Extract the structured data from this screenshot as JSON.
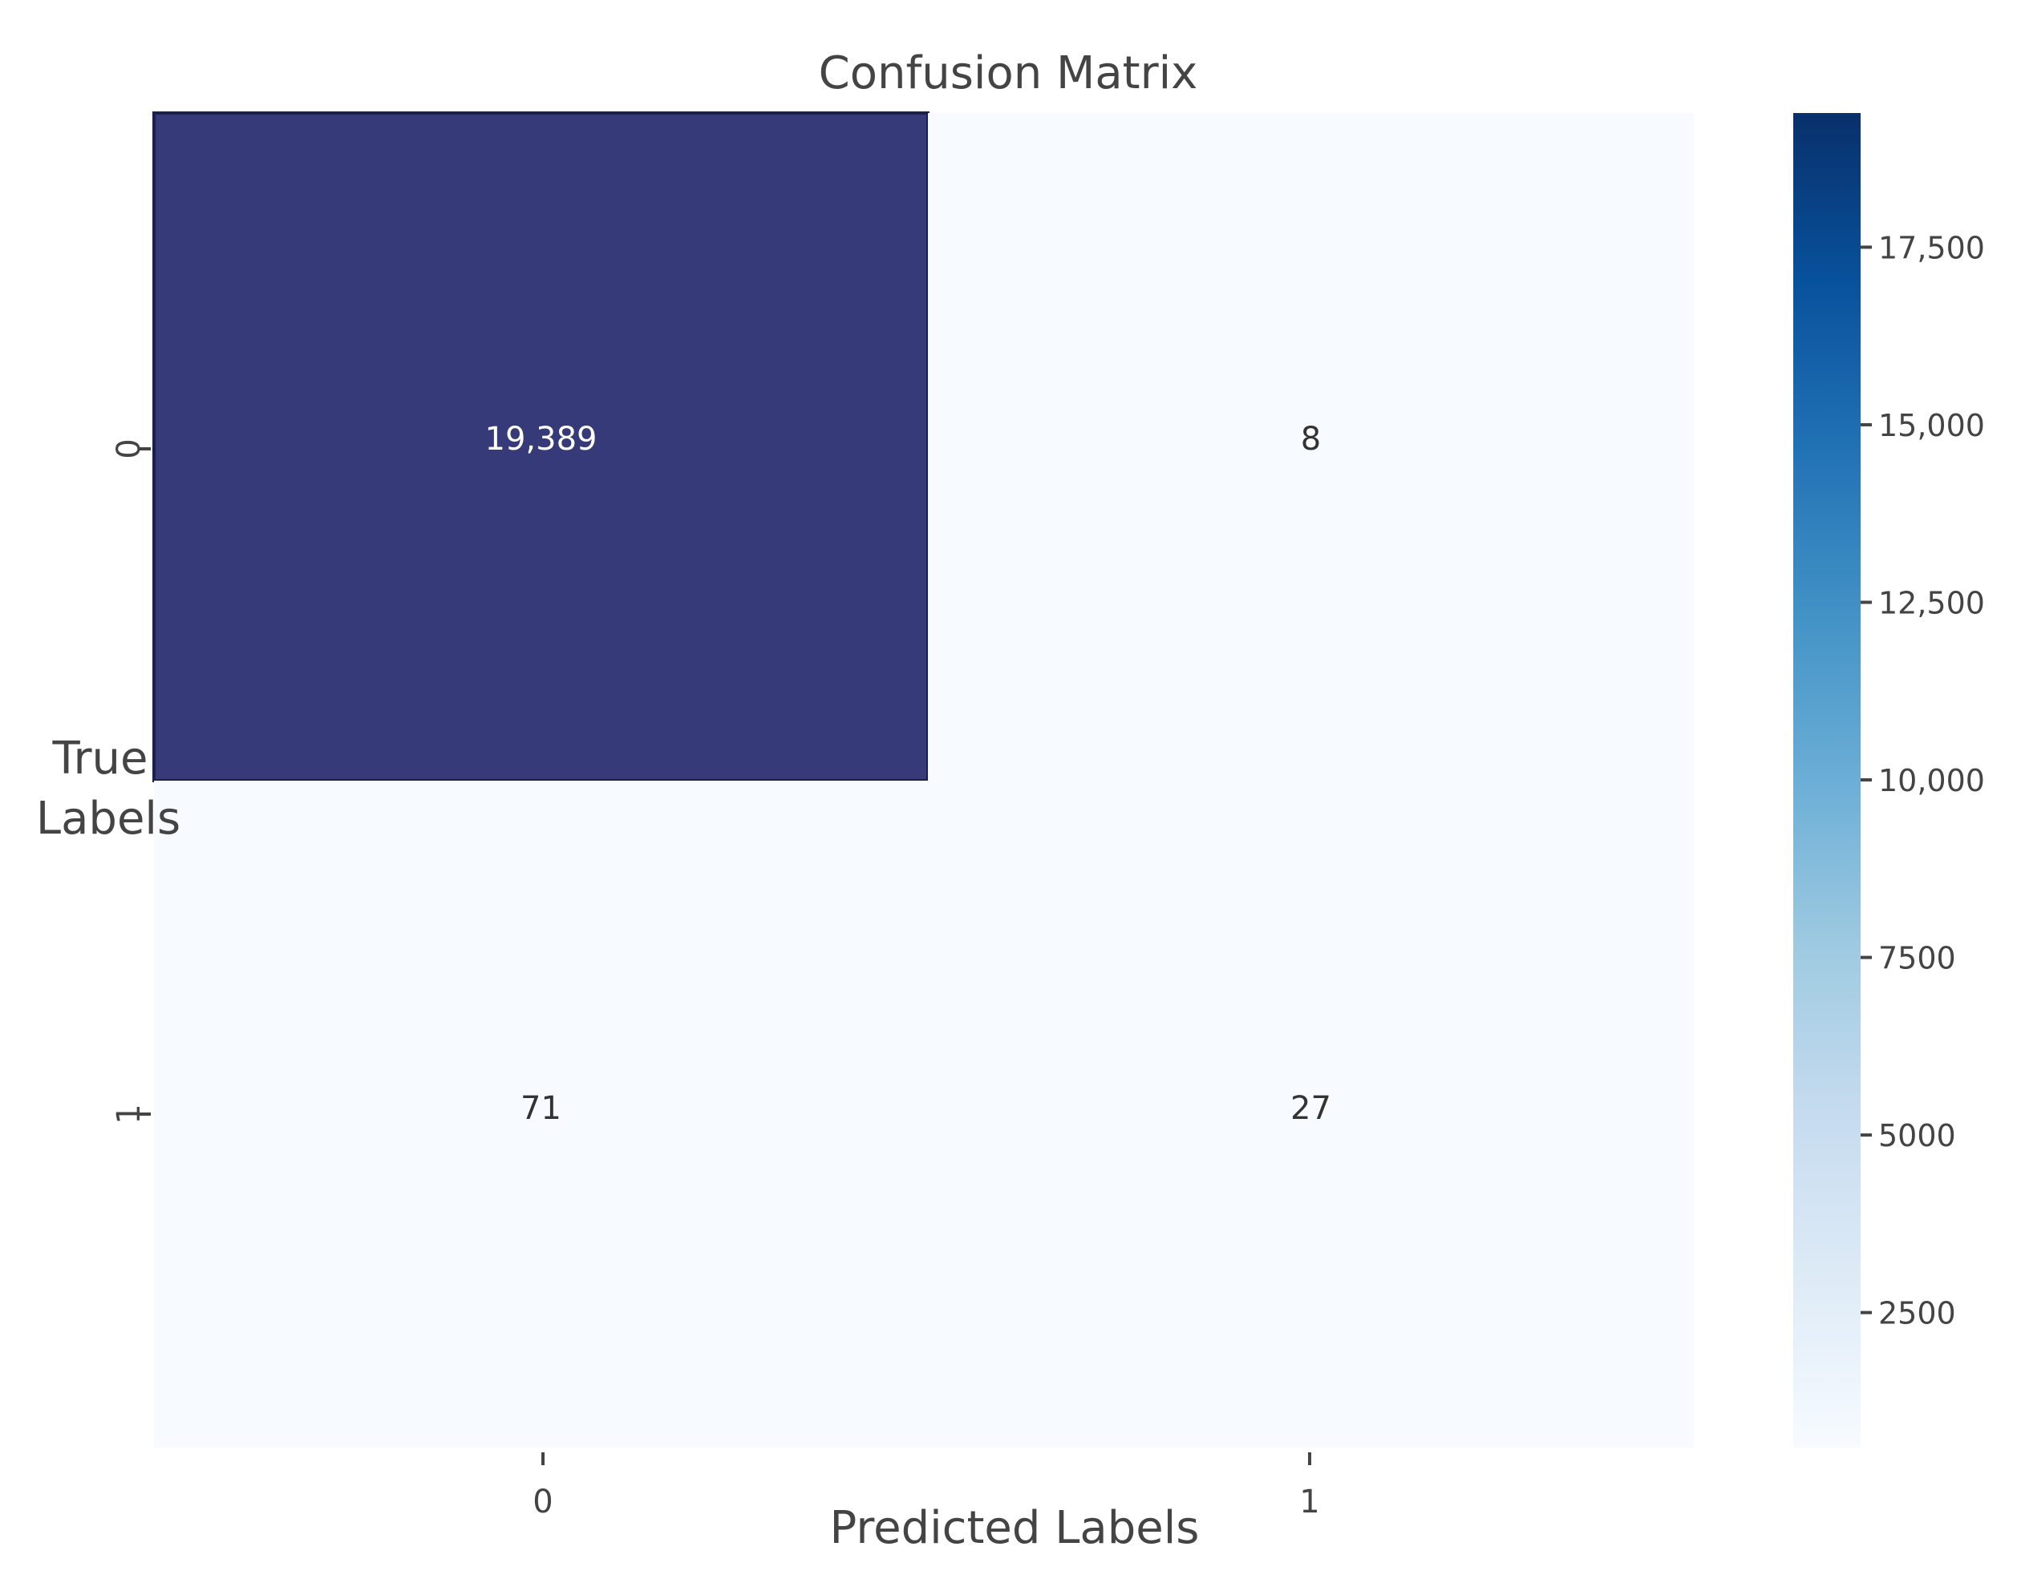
{
  "chart_data": {
    "type": "heatmap",
    "title": "Confusion Matrix",
    "xlabel": "Predicted Labels",
    "ylabel_lines": [
      "True",
      "Labels"
    ],
    "x_categories": [
      "0",
      "1"
    ],
    "y_categories": [
      "0",
      "1"
    ],
    "values": [
      [
        19389,
        8
      ],
      [
        71,
        27
      ]
    ],
    "cell_labels": [
      [
        "19,389",
        "8"
      ],
      [
        "71",
        "27"
      ]
    ],
    "colormap": "Blues",
    "colorbar": {
      "range": [
        0,
        19389
      ],
      "ticks": [
        2500,
        5000,
        7500,
        10000,
        12500,
        15000,
        17500
      ],
      "tick_labels": [
        "2500",
        "5000",
        "7500",
        "10,000",
        "12,500",
        "15,000",
        "17,500"
      ]
    },
    "colors": {
      "high_cell": "#373a78",
      "low_cell": "#f7fbff",
      "cell_border": "#1b1f4d",
      "text": "#333333",
      "text_on_dark": "#ffffff"
    }
  }
}
